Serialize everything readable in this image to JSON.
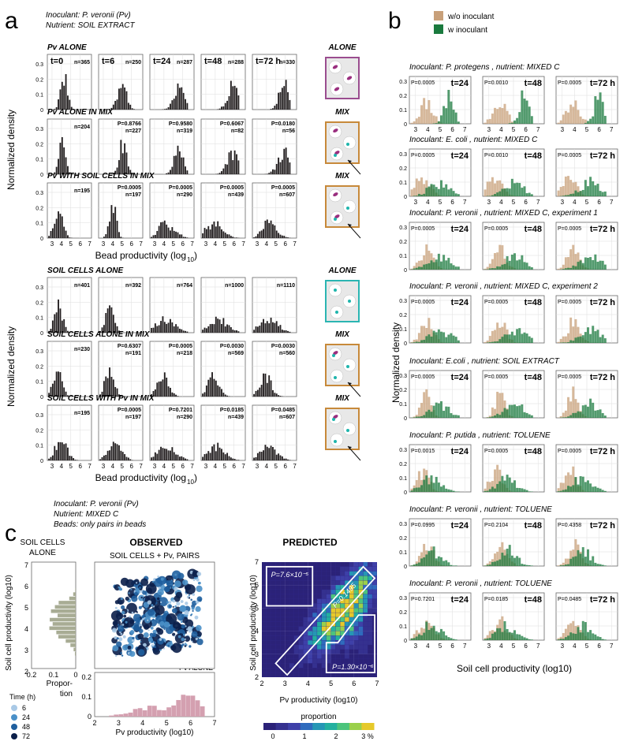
{
  "colors": {
    "bar_dark": "#231f20",
    "tan": "#c8a07a",
    "green": "#1a7a3e",
    "pink": "#d4a0b0",
    "gray_hist": "#a8ac94",
    "alone_frame": "#9a4d8f",
    "mix_frame": "#c7893a",
    "soil_frame": "#2bb5b2"
  },
  "panel_a": {
    "label": "a",
    "header": [
      "Inoculant: P. veronii (Pv)",
      "Nutrient: SOIL EXTRACT"
    ],
    "ylabel": "Normalized density",
    "xlabel_main": "Bead productivity (log",
    "xlabel_sub": "10",
    "xlabel_end": ")",
    "times": [
      "t=0",
      "t=6",
      "t=24",
      "t=48",
      "t=72 h"
    ],
    "xticks": [
      "3",
      "4",
      "5",
      "6",
      "7"
    ],
    "rows": [
      {
        "title": "Pv ALONE",
        "mark": "ALONE",
        "yticks": [
          "0.3",
          "0.2",
          "0.1",
          "0"
        ],
        "p": [
          "",
          "",
          "",
          "",
          ""
        ],
        "n": [
          "n=365",
          "n=250",
          "n=287",
          "n=288",
          "n=330"
        ]
      },
      {
        "title": "Pv ALONE IN MIX",
        "mark": "MIX",
        "yticks": [
          "0.3",
          "0.2",
          "0.1",
          "0"
        ],
        "p": [
          "",
          "0.8766",
          "0.9580",
          "0.6067",
          "0.0180"
        ],
        "n": [
          "n=204",
          "n=227",
          "n=319",
          "n=82",
          "n=56"
        ]
      },
      {
        "title": "Pv WITH SOIL CELLS IN MIX",
        "mark": "MIX",
        "yticks": [
          "0.3",
          "0.2",
          "0.1",
          "0"
        ],
        "p": [
          "",
          "0.0005",
          "0.0005",
          "0.0005",
          "0.0005"
        ],
        "n": [
          "n=195",
          "n=197",
          "n=290",
          "n=439",
          "n=607"
        ]
      },
      {
        "title": "SOIL CELLS ALONE",
        "mark": "ALONE",
        "yticks": [
          "0.3",
          "0.2",
          "0.1",
          "0"
        ],
        "p": [
          "",
          "",
          "",
          "",
          ""
        ],
        "n": [
          "n=401",
          "n=392",
          "n=764",
          "n=1000",
          "n=1110"
        ]
      },
      {
        "title": "SOIL CELLS ALONE IN MIX",
        "mark": "MIX",
        "yticks": [
          "0.3",
          "0.2",
          "0.1",
          "0"
        ],
        "p": [
          "",
          "0.6307",
          "0.0005",
          "0.0030",
          "0.0030"
        ],
        "n": [
          "n=230",
          "n=191",
          "n=218",
          "n=569",
          "n=560"
        ]
      },
      {
        "title": "SOIL CELLS WITH Pv IN MIX",
        "mark": "MIX",
        "yticks": [
          "0.3",
          "0.2",
          "0.1",
          "0"
        ],
        "p": [
          "",
          "0.0005",
          "0.7201",
          "0.0185",
          "0.0485"
        ],
        "n": [
          "n=195",
          "n=197",
          "n=290",
          "n=439",
          "n=607"
        ]
      }
    ]
  },
  "panel_b": {
    "label": "b",
    "legend": [
      "w/o inoculant",
      "w inoculant"
    ],
    "ylabel": "Normalized density",
    "xlabel": "Soil cell productivity (log10)",
    "times": [
      "t=24",
      "t=48",
      "t=72 h"
    ],
    "yticks": [
      "0.3",
      "0.2",
      "0.1",
      "0"
    ],
    "xticks": [
      "3",
      "4",
      "5",
      "6",
      "7"
    ],
    "rows": [
      {
        "title": "Inoculant: P. protegens , nutrient: MIXED C",
        "p": [
          "0.0005",
          "0.0010",
          "0.0005"
        ]
      },
      {
        "title": "Inoculant: E. coli , nutrient: MIXED C",
        "p": [
          "0.0005",
          "0.0010",
          "0.0005"
        ]
      },
      {
        "title": "Inoculant: P. veronii , nutrient: MIXED C, experiment 1",
        "p": [
          "0.0005",
          "0.0005",
          "0.0005"
        ]
      },
      {
        "title": "Inoculant: P. veronii , nutrient: MIXED C, experiment 2",
        "p": [
          "0.0005",
          "0.0005",
          "0.0005"
        ]
      },
      {
        "title": "Inoculant: E.coli , nutrient: SOIL EXTRACT",
        "p": [
          "0.0005",
          "0.0005",
          "0.0005"
        ]
      },
      {
        "title": "Inoculant: P. putida , nutrient: TOLUENE",
        "p": [
          "0.0015",
          "0.0005",
          "0.0005"
        ]
      },
      {
        "title": "Inoculant: P. veronii , nutrient: TOLUENE",
        "p": [
          "0.0995",
          "0.2104",
          "0.4358"
        ]
      },
      {
        "title": "Inoculant: P. veronii , nutrient: TOLUENE",
        "p": [
          "0.7201",
          "0.0185",
          "0.0485"
        ]
      }
    ]
  },
  "panel_c": {
    "label": "c",
    "header": [
      "Inoculant: P. veronii (Pv)",
      "Nutrient: MIXED C",
      "Beads: only pairs in beads"
    ],
    "soil_alone_title": [
      "SOIL CELLS",
      "ALONE"
    ],
    "observed_title": "OBSERVED",
    "observed_sub": "SOIL CELLS + Pv, PAIRS",
    "predicted_title": "PREDICTED",
    "pv_alone_label": "Pv ALONE",
    "ylabel_soil": "Soil cell productivity (log10)",
    "xlabel_pv": "Pv productivity (log10)",
    "proportion_ylabel": [
      "Propor-",
      "tion"
    ],
    "time_legend_title": "Time (h)",
    "time_values": [
      "6",
      "24",
      "48",
      "72"
    ],
    "time_colors": [
      "#a9c9e6",
      "#4a90c8",
      "#1f5f9e",
      "#0b1f4a"
    ],
    "y_ticks_soil": [
      "7",
      "6",
      "5",
      "4",
      "3",
      "2"
    ],
    "x_ticks_soil": [
      "0.2",
      "0.1",
      "0"
    ],
    "x_ticks_pv": [
      "2",
      "3",
      "4",
      "5",
      "6",
      "7"
    ],
    "prop_yticks": [
      "0.2",
      "0.1",
      "0"
    ],
    "pred_xticks": [
      "2",
      "3",
      "4",
      "5",
      "6",
      "7"
    ],
    "pred_yticks": [
      "7",
      "6",
      "5",
      "4",
      "3",
      "2"
    ],
    "p_annotations": [
      "P=7.6×10⁻⁵",
      "P=0.1495",
      "P=1.30×10⁻⁶"
    ],
    "colorbar_title": "proportion",
    "colorbar_ticks": [
      "0",
      "1",
      "2",
      "3 %"
    ]
  }
}
